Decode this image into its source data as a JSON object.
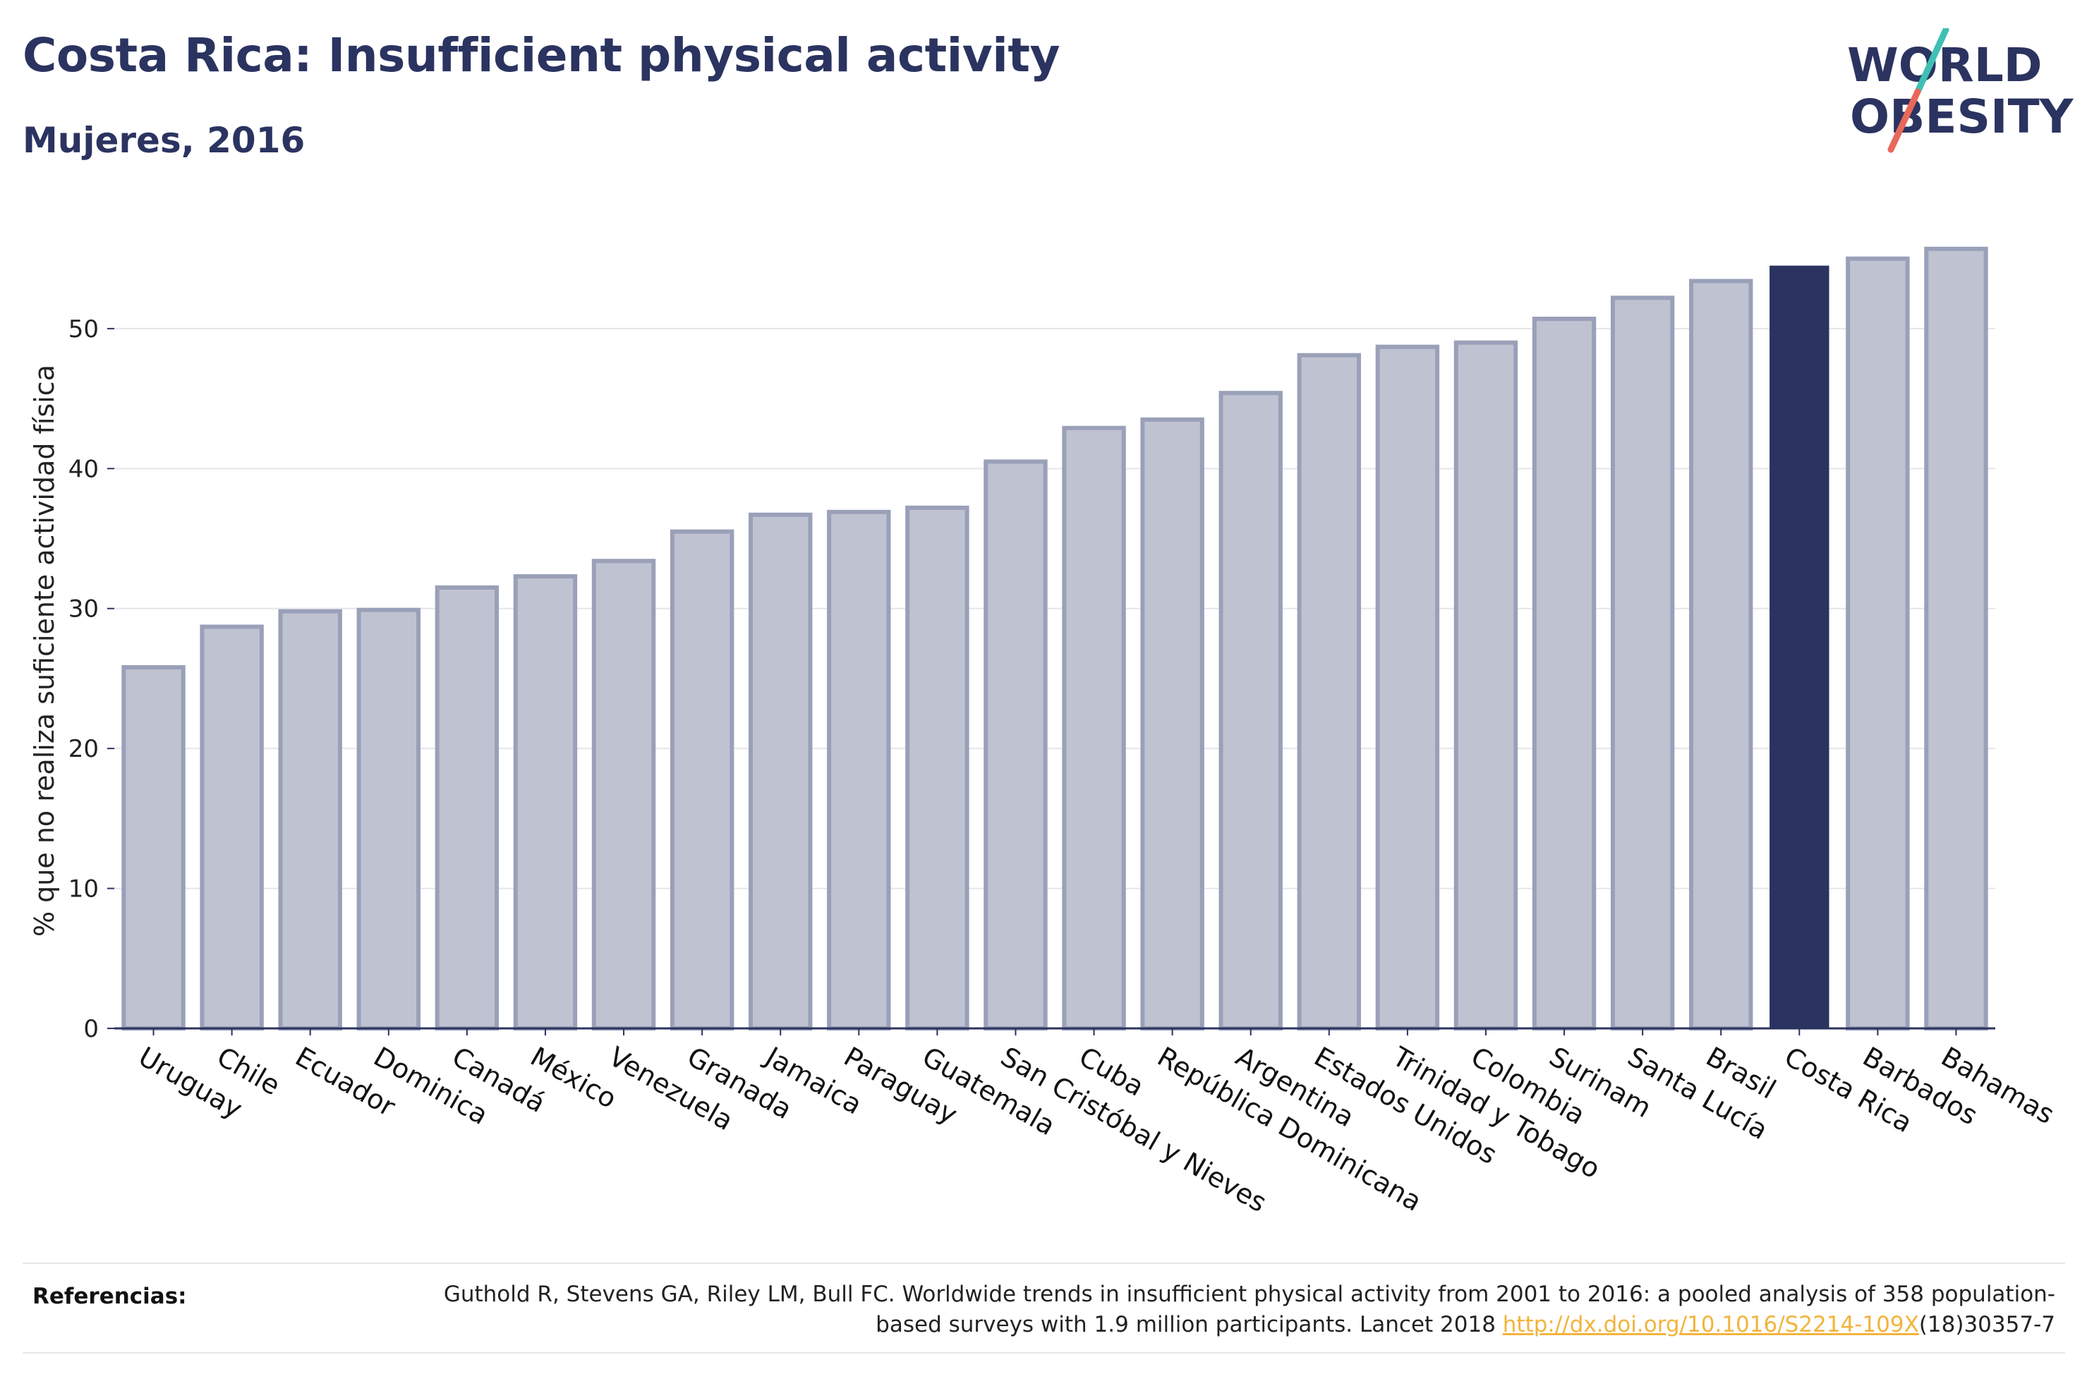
{
  "header": {
    "title": "Costa Rica: Insufficient physical activity",
    "subtitle": "Mujeres, 2016"
  },
  "logo": {
    "line1": "WORLD",
    "line2": "OBESITY",
    "colors": {
      "text": "#2b3360",
      "slash_top": "#3fbfb4",
      "slash_bottom": "#e8685a"
    }
  },
  "chart_data": {
    "type": "bar",
    "title": "",
    "xlabel": "",
    "ylabel": "% que no realiza suficiente actividad física",
    "ylim": [
      0,
      57
    ],
    "yticks": [
      0,
      10,
      20,
      30,
      40,
      50
    ],
    "grid": true,
    "highlight": "Costa Rica",
    "colors": {
      "bar": "#bfc2d0",
      "bar_edge": "#9aa0b8",
      "highlight": "#2b3360",
      "grid": "#e6e6ea",
      "axis": "#2b3360"
    },
    "categories": [
      "Uruguay",
      "Chile",
      "Ecuador",
      "Dominica",
      "Canadá",
      "México",
      "Venezuela",
      "Granada",
      "Jamaica",
      "Paraguay",
      "Guatemala",
      "San Cristóbal y Nieves",
      "Cuba",
      "República Dominicana",
      "Argentina",
      "Estados Unidos",
      "Trinidad y Tobago",
      "Colombia",
      "Surinam",
      "Santa Lucía",
      "Brasil",
      "Costa Rica",
      "Barbados",
      "Bahamas"
    ],
    "values": [
      25.8,
      28.7,
      29.8,
      29.9,
      31.5,
      32.3,
      33.4,
      35.5,
      36.7,
      36.9,
      37.2,
      40.5,
      42.9,
      43.5,
      45.4,
      48.1,
      48.7,
      49.0,
      50.7,
      52.2,
      53.4,
      54.5,
      55.0,
      55.7
    ]
  },
  "references": {
    "label": "Referencias:",
    "text_before": "Guthold R, Stevens GA, Riley LM, Bull FC. Worldwide trends in insufficient physical activity from 2001 to 2016: a pooled analysis of 358 population-based surveys with 1.9 million participants. Lancet 2018 ",
    "link": "http://dx.doi.org/10.1016/S2214-109X",
    "text_after": "(18)30357-7"
  }
}
